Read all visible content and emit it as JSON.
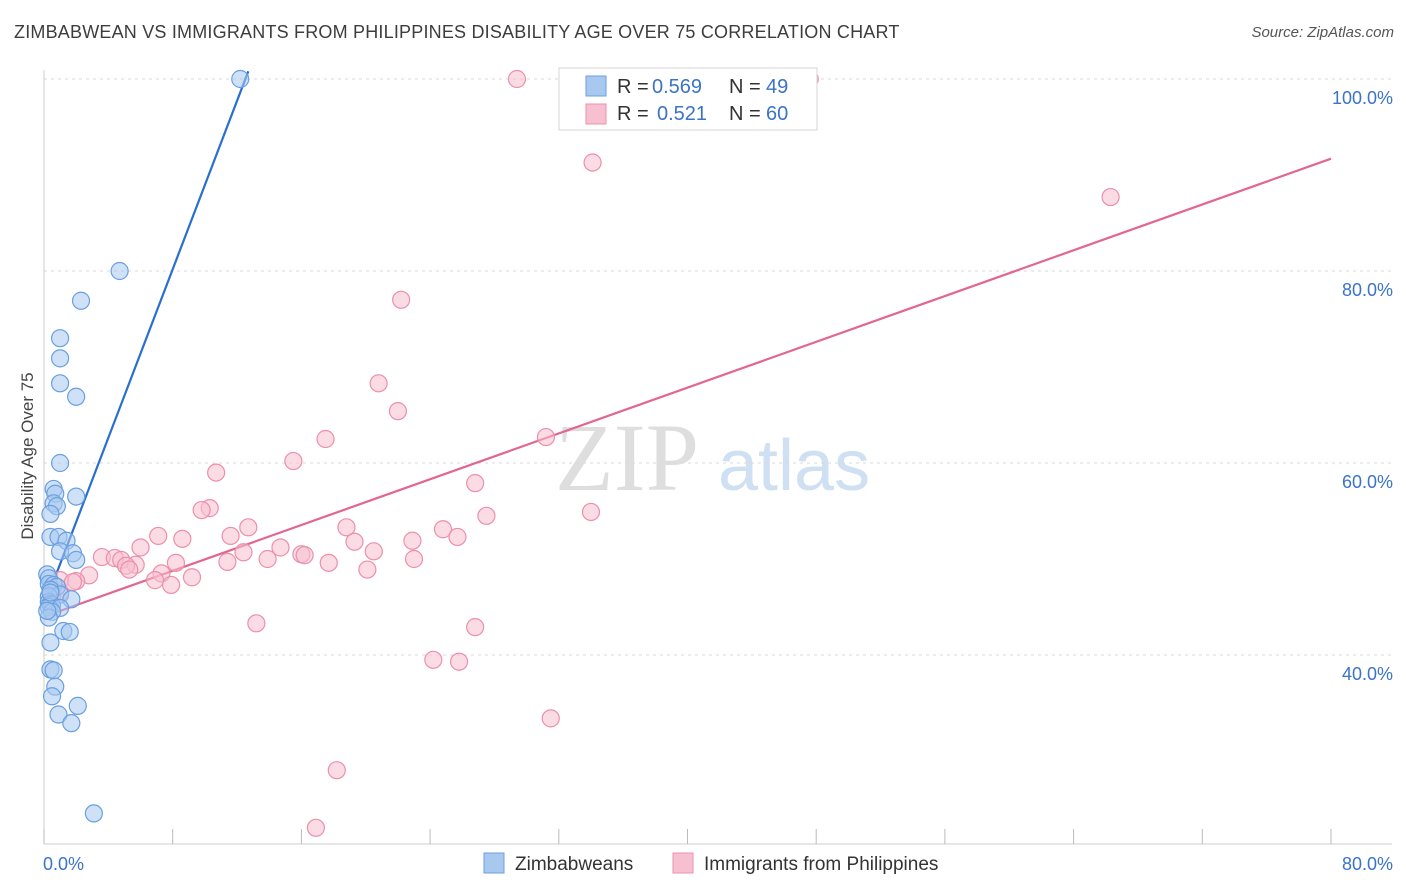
{
  "title": "ZIMBABWEAN VS IMMIGRANTS FROM PHILIPPINES DISABILITY AGE OVER 75 CORRELATION CHART",
  "source": "Source: ZipAtlas.com",
  "watermark": {
    "zip": "ZIP",
    "atlas": "atlas"
  },
  "colors": {
    "blue_fill": "#a8c8f0",
    "blue_stroke": "#6a9fe0",
    "blue_line": "#2a6fd0",
    "pink_fill": "#f7c0d0",
    "pink_stroke": "#ec8fab",
    "pink_line": "#e2668f",
    "tick_text": "#3a73c7",
    "grid": "#d9d9d9"
  },
  "legend": {
    "r_label": "R =",
    "n_label": "N =",
    "rows": [
      {
        "r": "0.569",
        "n": "49"
      },
      {
        "r": "0.521",
        "n": "60"
      }
    ]
  },
  "chart_data": {
    "type": "scatter",
    "title": "ZIMBABWEAN VS IMMIGRANTS FROM PHILIPPINES DISABILITY AGE OVER 75 CORRELATION CHART",
    "xlabel": "",
    "ylabel": "Disability Age Over 75",
    "xlim": [
      0,
      80
    ],
    "ylim": [
      20,
      102
    ],
    "x_tick_labels": [
      {
        "value": 0,
        "label": "0.0%"
      },
      {
        "value": 80,
        "label": "80.0%"
      }
    ],
    "y_tick_labels": [
      {
        "value": 40,
        "label": "40.0%"
      },
      {
        "value": 60,
        "label": "60.0%"
      },
      {
        "value": 80,
        "label": "80.0%"
      },
      {
        "value": 100,
        "label": "100.0%"
      }
    ],
    "series": [
      {
        "name": "Zimbabweans",
        "color": "blue",
        "r": 0.569,
        "n": 49,
        "trend": [
          [
            0.3,
            46.4
          ],
          [
            12.7,
            100.8
          ]
        ],
        "points": [
          [
            12.2,
            100.0
          ],
          [
            4.7,
            80.0
          ],
          [
            2.3,
            76.9
          ],
          [
            1.0,
            73.0
          ],
          [
            1.0,
            70.9
          ],
          [
            1.0,
            68.3
          ],
          [
            2.0,
            66.9
          ],
          [
            1.0,
            60.0
          ],
          [
            0.6,
            57.3
          ],
          [
            0.7,
            56.8
          ],
          [
            2.0,
            56.5
          ],
          [
            0.6,
            55.8
          ],
          [
            0.8,
            55.5
          ],
          [
            0.4,
            54.7
          ],
          [
            0.4,
            52.3
          ],
          [
            0.9,
            52.3
          ],
          [
            1.4,
            51.9
          ],
          [
            1.0,
            50.8
          ],
          [
            1.8,
            50.6
          ],
          [
            2.0,
            49.9
          ],
          [
            0.2,
            48.4
          ],
          [
            0.3,
            48.0
          ],
          [
            0.3,
            47.4
          ],
          [
            0.6,
            47.3
          ],
          [
            0.8,
            47.1
          ],
          [
            0.4,
            46.8
          ],
          [
            1.0,
            46.3
          ],
          [
            0.3,
            46.1
          ],
          [
            1.7,
            45.8
          ],
          [
            0.3,
            45.5
          ],
          [
            0.4,
            45.3
          ],
          [
            0.5,
            45.2
          ],
          [
            0.3,
            45.0
          ],
          [
            1.0,
            44.9
          ],
          [
            0.5,
            44.5
          ],
          [
            0.3,
            43.9
          ],
          [
            1.2,
            42.5
          ],
          [
            1.6,
            42.4
          ],
          [
            0.4,
            41.3
          ],
          [
            0.4,
            38.5
          ],
          [
            0.6,
            38.4
          ],
          [
            0.7,
            36.7
          ],
          [
            0.5,
            35.7
          ],
          [
            2.1,
            34.7
          ],
          [
            0.9,
            33.8
          ],
          [
            1.7,
            32.9
          ],
          [
            3.1,
            23.5
          ],
          [
            0.4,
            46.5
          ],
          [
            0.2,
            44.6
          ]
        ]
      },
      {
        "name": "Immigrants from Philippines",
        "color": "pink",
        "r": 0.521,
        "n": 60,
        "trend": [
          [
            0.0,
            44.0
          ],
          [
            80.0,
            91.7
          ]
        ],
        "points": [
          [
            29.4,
            100.0
          ],
          [
            47.6,
            100.0
          ],
          [
            34.1,
            91.3
          ],
          [
            66.3,
            87.7
          ],
          [
            22.2,
            77.0
          ],
          [
            20.8,
            68.3
          ],
          [
            22.0,
            65.4
          ],
          [
            17.5,
            62.5
          ],
          [
            31.2,
            62.7
          ],
          [
            15.5,
            60.2
          ],
          [
            10.7,
            59.0
          ],
          [
            26.8,
            57.9
          ],
          [
            10.3,
            55.3
          ],
          [
            9.8,
            55.1
          ],
          [
            34.0,
            54.9
          ],
          [
            27.5,
            54.5
          ],
          [
            12.7,
            53.3
          ],
          [
            18.8,
            53.3
          ],
          [
            24.8,
            53.1
          ],
          [
            7.1,
            52.4
          ],
          [
            11.6,
            52.4
          ],
          [
            8.6,
            52.1
          ],
          [
            25.7,
            52.3
          ],
          [
            19.3,
            51.8
          ],
          [
            22.9,
            51.9
          ],
          [
            6.0,
            51.2
          ],
          [
            14.7,
            51.2
          ],
          [
            20.5,
            50.8
          ],
          [
            12.4,
            50.7
          ],
          [
            16.0,
            50.5
          ],
          [
            16.2,
            50.4
          ],
          [
            3.6,
            50.2
          ],
          [
            4.4,
            50.1
          ],
          [
            13.9,
            50.0
          ],
          [
            23.0,
            50.0
          ],
          [
            4.8,
            49.9
          ],
          [
            11.4,
            49.7
          ],
          [
            8.2,
            49.6
          ],
          [
            17.7,
            49.6
          ],
          [
            5.7,
            49.4
          ],
          [
            5.1,
            49.3
          ],
          [
            5.3,
            48.9
          ],
          [
            20.1,
            48.9
          ],
          [
            7.3,
            48.5
          ],
          [
            2.8,
            48.3
          ],
          [
            9.2,
            48.1
          ],
          [
            6.9,
            47.8
          ],
          [
            1.0,
            47.8
          ],
          [
            2.0,
            47.7
          ],
          [
            1.8,
            47.6
          ],
          [
            7.9,
            47.3
          ],
          [
            1.0,
            46.5
          ],
          [
            13.2,
            43.3
          ],
          [
            26.8,
            42.9
          ],
          [
            24.2,
            39.5
          ],
          [
            25.8,
            39.3
          ],
          [
            31.5,
            33.4
          ],
          [
            18.2,
            28.0
          ],
          [
            16.9,
            22.0
          ],
          [
            0.5,
            46.2
          ]
        ]
      }
    ]
  },
  "bottom_legend": [
    "Zimbabweans",
    "Immigrants from Philippines"
  ]
}
